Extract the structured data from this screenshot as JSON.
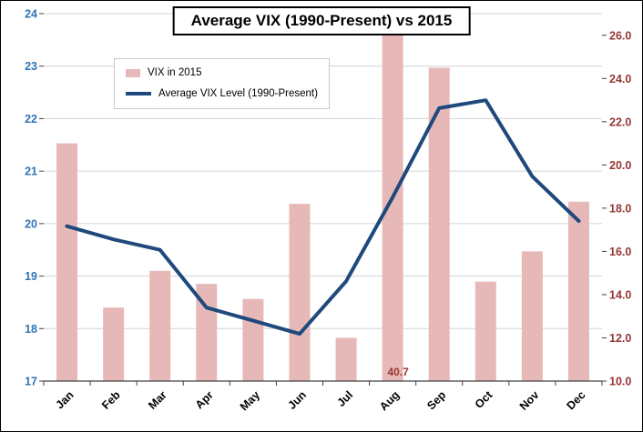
{
  "title": "Average VIX (1990-Present) vs 2015",
  "legend": {
    "items": [
      {
        "label": "VIX in 2015",
        "swatch": "bar",
        "color": "#e6b9b8"
      },
      {
        "label": "Average VIX Level (1990-Present)",
        "swatch": "line",
        "color": "#1f497d"
      }
    ]
  },
  "chart_data": {
    "type": "combo",
    "title": "Average VIX (1990-Present) vs 2015",
    "categories": [
      "Jan",
      "Feb",
      "Mar",
      "Apr",
      "May",
      "Jun",
      "Jul",
      "Aug",
      "Sep",
      "Oct",
      "Nov",
      "Dec"
    ],
    "series": [
      {
        "name": "VIX in 2015",
        "type": "bar",
        "axis": "right",
        "color": "#e6b9b8",
        "values": [
          21.0,
          13.4,
          15.1,
          14.5,
          13.8,
          18.2,
          12.0,
          40.7,
          24.5,
          14.6,
          16.0,
          18.3
        ]
      },
      {
        "name": "Average VIX Level (1990-Present)",
        "type": "line",
        "axis": "left",
        "color": "#1f497d",
        "values": [
          19.95,
          19.7,
          19.5,
          18.4,
          18.15,
          17.9,
          18.9,
          20.5,
          22.2,
          22.35,
          20.9,
          20.05
        ]
      }
    ],
    "left_axis": {
      "min": 17,
      "max": 24,
      "tick_labels": [
        "17",
        "18",
        "19",
        "20",
        "21",
        "22",
        "23",
        "24"
      ],
      "label_color": "#2e74b5"
    },
    "right_axis": {
      "min": 10,
      "max": 27,
      "tick_values": [
        10,
        12,
        14,
        16,
        18,
        20,
        22,
        24,
        26
      ],
      "tick_labels": [
        "10.0",
        "12.0",
        "14.0",
        "16.0",
        "18.0",
        "20.0",
        "22.0",
        "24.0",
        "26.0"
      ],
      "label_color": "#953735"
    },
    "annotations": [
      {
        "text": "40.7",
        "category": "Aug",
        "color": "#943634"
      }
    ],
    "grid": true,
    "legend_position": "upper-left",
    "x_tick_rotation": 45,
    "colors": {
      "grid": "#d4d4d4",
      "axis": "#404040",
      "x_labels": "#000000"
    }
  }
}
